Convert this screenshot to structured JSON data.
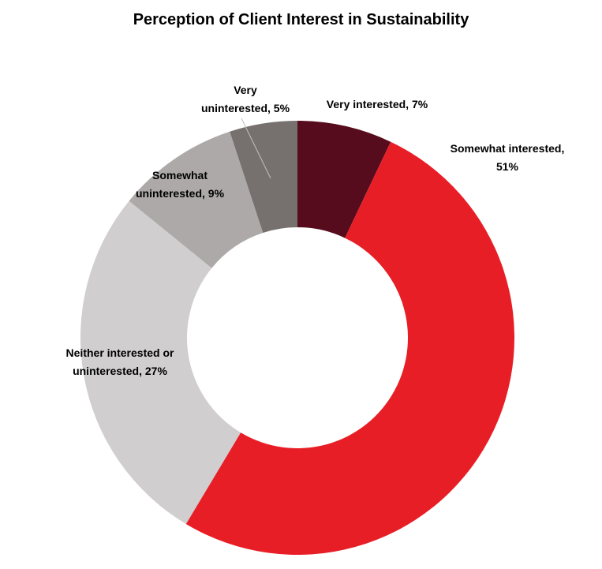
{
  "chart_data": {
    "type": "pie",
    "style": "donut",
    "title": "Perception of Client Interest in Sustainability",
    "slices": [
      {
        "label": "Very interested",
        "value": 7,
        "display": "7%",
        "color": "#560c1c"
      },
      {
        "label": "Somewhat interested",
        "value": 51,
        "display": "51%",
        "color": "#e81e26"
      },
      {
        "label": "Neither interested or uninterested",
        "value": 27,
        "display": "27%",
        "color": "#d0cecf"
      },
      {
        "label": "Somewhat uninterested",
        "value": 9,
        "display": "9%",
        "color": "#ada9a8"
      },
      {
        "label": "Very uninterested",
        "value": 5,
        "display": "5%",
        "color": "#76716f"
      }
    ],
    "slice_labels": [
      {
        "lines": [
          "Very interested, 7%"
        ]
      },
      {
        "lines": [
          "Somewhat interested,",
          "51%"
        ]
      },
      {
        "lines": [
          "Neither interested or",
          "uninterested, 27%"
        ]
      },
      {
        "lines": [
          "Somewhat",
          "uninterested, 9%"
        ]
      },
      {
        "lines": [
          "Very",
          "uninterested, 5%"
        ]
      }
    ],
    "start_angle": "12 o'clock",
    "direction": "clockwise",
    "legend": "none"
  }
}
